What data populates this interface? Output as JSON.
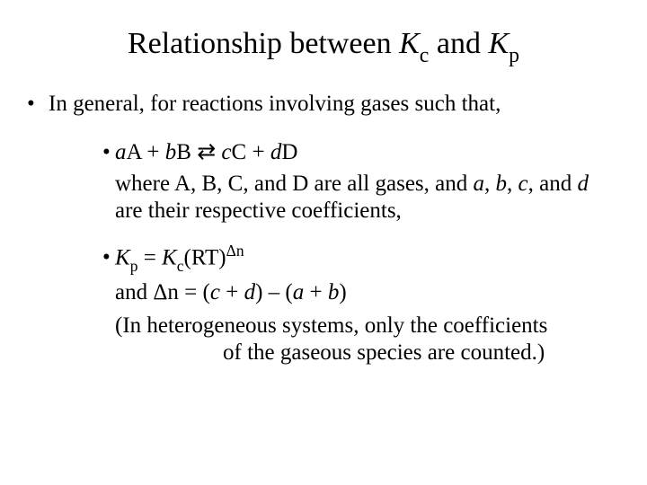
{
  "title_pre": "Relationship between ",
  "title_K1": "K",
  "title_sub_c": "c",
  "title_and": " and ",
  "title_K2": "K",
  "title_sub_p": "p",
  "b1": "In general, for reactions involving gases such that,",
  "rxn_a": "a",
  "rxn_A": "A + ",
  "rxn_b": " b",
  "rxn_B": "B ",
  "rxn_arrows": "⇄",
  "rxn_c": " c",
  "rxn_C": "C + ",
  "rxn_d": "d",
  "rxn_D": "D",
  "where_1": "where A, B, C, and D are all gases, and ",
  "where_a": "a",
  "where_c1": ", ",
  "where_b": "b",
  "where_c2": ", ",
  "where_c": "c",
  "where_c3": ", and ",
  "where_d": "d",
  "where_end": " are their respective coefficients,",
  "eq_K": "K",
  "eq_p": "p",
  "eq_eq": " = ",
  "eq_K2": "K",
  "eq_c": "c",
  "eq_RT": "(RT)",
  "eq_dn": "Δn",
  "dn_1": "and Δn = (",
  "dn_c": "c",
  "dn_plus1": " + ",
  "dn_d": "d",
  "dn_mid": ") – (",
  "dn_a": "a",
  "dn_plus2": " + ",
  "dn_b": "b",
  "dn_end": ")",
  "note_1": "(In heterogeneous systems, only the coefficients",
  "note_2": "of the gaseous species are counted.)"
}
